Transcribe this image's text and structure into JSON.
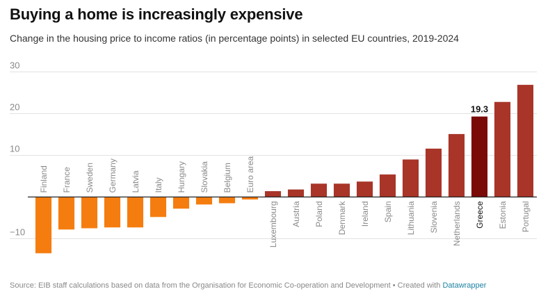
{
  "title": "Buying a home is increasingly expensive",
  "subtitle": "Change in the housing price to income ratios (in percentage points) in selected EU countries, 2019-2024",
  "footer": {
    "source": "Source: EIB staff calculations based on data from the Organisation for Economic Co-operation and Development",
    "separator": " • Created with ",
    "credit": "Datawrapper"
  },
  "colors": {
    "negative": "#f57d0f",
    "positive": "#a83528",
    "highlight": "#7a0a08",
    "grid": "#e2e2e2",
    "axis": "#222222",
    "tick_text": "#888888",
    "category_text": "#8a8a8a",
    "highlight_text": "#111111"
  },
  "chart_data": {
    "type": "bar",
    "categories": [
      "Finland",
      "France",
      "Sweden",
      "Germany",
      "Latvia",
      "Italy",
      "Hungary",
      "Slovakia",
      "Belgium",
      "Euro area",
      "Luxembourg",
      "Austria",
      "Poland",
      "Denmark",
      "Ireland",
      "Spain",
      "Lithuania",
      "Slovenia",
      "Netherlands",
      "Greece",
      "Estonia",
      "Portugal"
    ],
    "values": [
      -13.5,
      -7.8,
      -7.5,
      -7.3,
      -7.3,
      -4.8,
      -2.8,
      -1.8,
      -1.5,
      -0.6,
      1.4,
      1.8,
      3.2,
      3.2,
      3.7,
      5.4,
      9.0,
      11.6,
      15.1,
      19.3,
      22.8,
      26.9
    ],
    "highlight": "Greece",
    "data_labels": [
      {
        "category": "Greece",
        "text": "19.3"
      }
    ],
    "yticks": [
      -10,
      10,
      20,
      30
    ],
    "ylim": [
      -14.5,
      31
    ],
    "xlabel": "",
    "ylabel": "",
    "grid": true
  }
}
